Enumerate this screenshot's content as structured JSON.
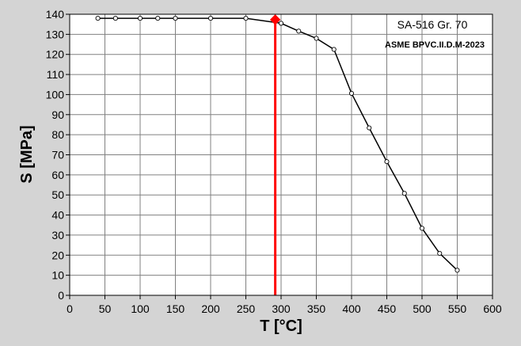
{
  "chart_data": {
    "type": "line",
    "title": "",
    "xlabel": "T [°C]",
    "ylabel": "S [MPa]",
    "xlim": [
      0,
      600
    ],
    "ylim": [
      0,
      140
    ],
    "x_ticks": [
      0,
      50,
      100,
      150,
      200,
      250,
      300,
      350,
      400,
      450,
      500,
      550,
      600
    ],
    "y_ticks": [
      0,
      10,
      20,
      30,
      40,
      50,
      60,
      70,
      80,
      90,
      100,
      110,
      120,
      130,
      140
    ],
    "grid": true,
    "series": [
      {
        "x": [
          40,
          65,
          100,
          125,
          150,
          200,
          250,
          300,
          325,
          350,
          375,
          400,
          425,
          450,
          475,
          500,
          525,
          550
        ],
        "y": [
          138,
          138,
          138,
          138,
          138,
          138,
          138,
          135.5,
          131.6,
          128,
          122.5,
          100.6,
          83.4,
          66.6,
          50.8,
          33.4,
          20.9,
          12.5
        ],
        "color": "#000000",
        "marker": "open-circle"
      }
    ],
    "highlight": {
      "x": 291.7,
      "y": 137.3,
      "color": "#ff0000",
      "marker": "diamond",
      "vertical_line": true
    },
    "annotations": {
      "material": "SA-516 Gr. 70",
      "source": "ASME BPVC.II.D.M-2023"
    },
    "colors": {
      "background": "#d4d4d4",
      "plot_background": "#ffffff",
      "grid": "#808080",
      "line": "#000000",
      "highlight": "#ff0000"
    }
  }
}
